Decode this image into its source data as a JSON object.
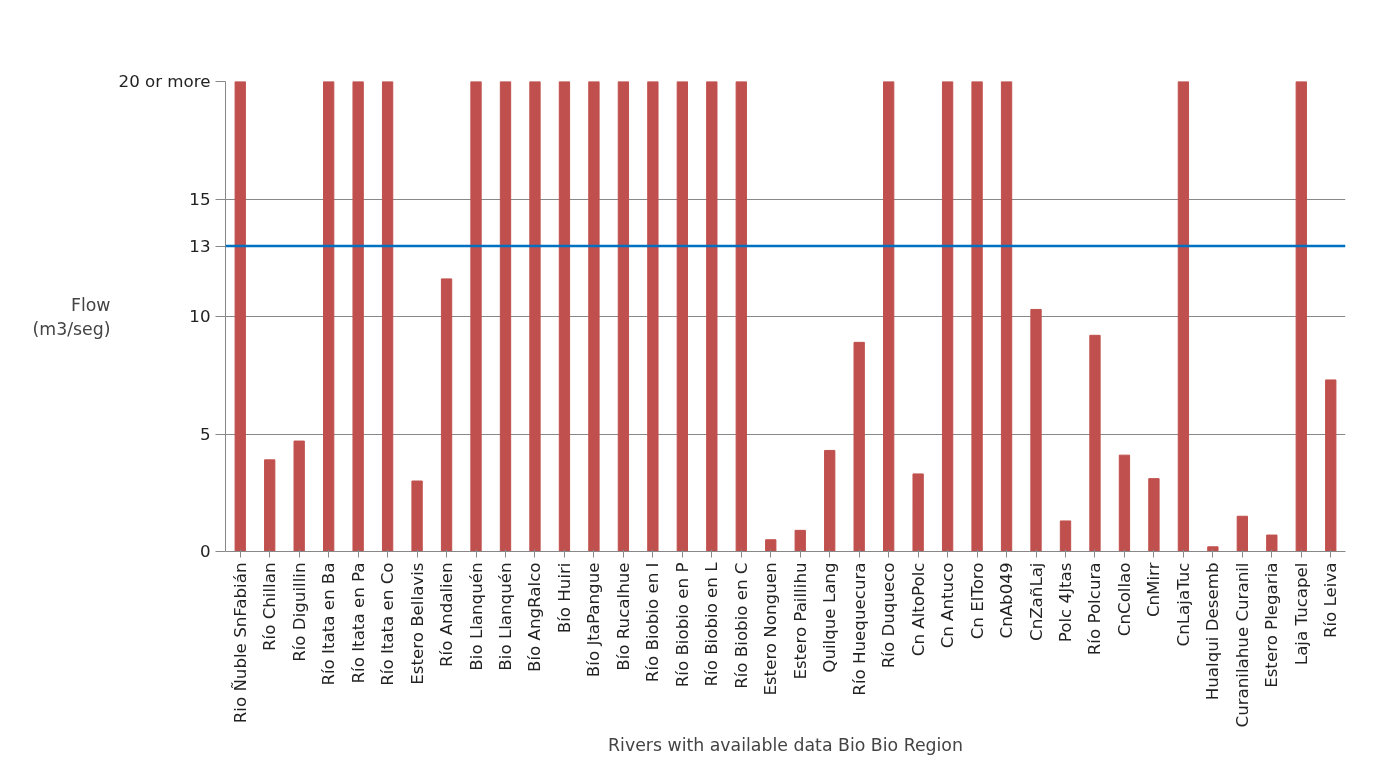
{
  "chart_data": {
    "type": "bar",
    "xlabel": "Rivers with available data Bio Bio Region",
    "ylabel": "Flow\n(m3/seg)",
    "categories": [
      "Rio Ñuble SnFabián",
      "Río Chillan",
      "Río Diguillin",
      "Río Itata en Ba",
      "Río Itata en Pa",
      "Río Itata en Co",
      "Estero Bellavis",
      "Río Andalien",
      "Bio Llanquén",
      "Bio Llanquén",
      "Bío AngRalco",
      "Bío Huiri",
      "Bío JtaPangue",
      "Bío Rucalhue",
      "Río Biobio en I",
      "Río Biobio en P",
      "Río Biobio en L",
      "Río Biobio en C",
      "Estero Nonguen",
      "Estero Paillihu",
      "Quilque Lang",
      "Río Huequecura",
      "Río Duqueco",
      "Cn AltoPolc",
      "Cn Antuco",
      "Cn ElToro",
      "CnAb049",
      "CnZañLaj",
      "Polc 4Jtas",
      "Río Polcura",
      "CnCollao",
      "CnMirr",
      "CnLajaTuc",
      "Hualqui Desemb",
      "Curanilahue Curanil",
      "Estero Plegaria",
      "Laja Tucapel",
      "Río Leiva"
    ],
    "values": [
      20,
      3.9,
      4.7,
      20,
      20,
      20,
      3.0,
      11.6,
      20,
      20,
      20,
      20,
      20,
      20,
      20,
      20,
      20,
      20,
      0.5,
      0.9,
      4.3,
      8.9,
      20,
      3.3,
      20,
      20,
      20,
      10.3,
      1.3,
      9.2,
      4.1,
      3.1,
      20,
      0.2,
      1.5,
      0.7,
      20,
      7.3
    ],
    "color": "#c0504d",
    "ylim": [
      0,
      20
    ],
    "yticks": [
      0,
      5,
      10,
      15,
      {
        "value": 20,
        "label": "20 or more"
      }
    ],
    "grid": "y",
    "ref_lines": [
      {
        "axis": "y",
        "value": 13,
        "label": "13",
        "color": "#0070c0"
      }
    ]
  }
}
